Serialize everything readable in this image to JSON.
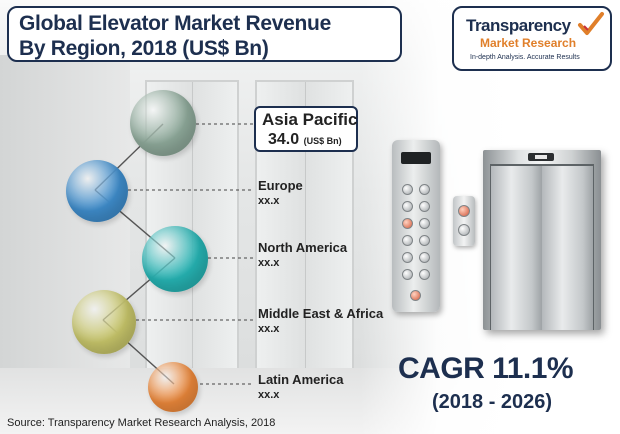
{
  "title": {
    "line1": "Global Elevator Market Revenue",
    "line2": "By Region, 2018 (US$ Bn)"
  },
  "logo": {
    "name": "Transparency",
    "sub": "Market Research",
    "tagline": "In-depth Analysis. Accurate Results"
  },
  "chart_data": {
    "type": "bubble-list",
    "title": "Global Elevator Market Revenue By Region, 2018 (US$ Bn)",
    "unit": "US$ Bn",
    "categories": [
      "Asia Pacific",
      "Europe",
      "North America",
      "Middle East & Africa",
      "Latin America"
    ],
    "values": [
      "34.0",
      "xx.x",
      "xx.x",
      "xx.x",
      "xx.x"
    ],
    "highlight": {
      "region": "Asia Pacific",
      "value": "34.0",
      "unit_label": "(US$ Bn)"
    },
    "colors": [
      "#8ea99a",
      "#3f8dcc",
      "#26b3b3",
      "#c7c56a",
      "#ef8a3c"
    ]
  },
  "cagr": {
    "label": "CAGR 11.1%",
    "period": "(2018 - 2026)"
  },
  "source": "Source: Transparency Market Research Analysis, 2018",
  "icons": [
    "checkmark-logo-icon",
    "elevator-illustration",
    "button-panel-illustration"
  ]
}
